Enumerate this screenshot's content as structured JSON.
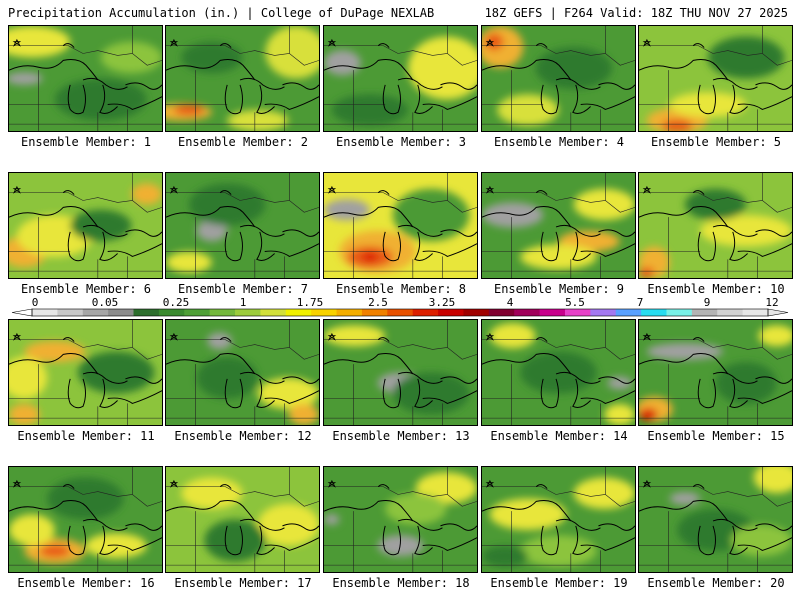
{
  "header": {
    "left_title": "Precipitation Accumulation (in.) | College of DuPage NEXLAB",
    "right_title": "18Z GEFS | F264 Valid: 18Z THU NOV 27 2025"
  },
  "colorbar": {
    "tick_labels": [
      "0",
      "0.05",
      "0.25",
      "1",
      "1.75",
      "2.5",
      "3.25",
      "4",
      "5.5",
      "7",
      "9",
      "12"
    ],
    "colors": [
      "#e6e6e6",
      "#c8c8c8",
      "#a6a6a6",
      "#8c8c8c",
      "#2d6e2d",
      "#3a8a2f",
      "#4e9f36",
      "#74b83c",
      "#9ccc3c",
      "#d2e03a",
      "#f0f000",
      "#f8d200",
      "#f4ae00",
      "#f08000",
      "#e85000",
      "#dc1e00",
      "#c80000",
      "#a00000",
      "#800030",
      "#a0005a",
      "#c8008c",
      "#e640c8",
      "#a478f0",
      "#5aa0ff",
      "#28dcf0",
      "#78f0e6",
      "#b4b4b4",
      "#d2d2d2",
      "#e6e6e6"
    ]
  },
  "members": [
    {
      "label": "Ensemble Member: 1",
      "base": "#4c9a35",
      "blobs": [
        [
          "#e8e63a",
          0.15,
          0.15,
          0.25,
          0.15
        ],
        [
          "#a0a0a0",
          0.1,
          0.5,
          0.12,
          0.06
        ],
        [
          "#2e7a2e",
          0.6,
          0.7,
          0.3,
          0.2
        ],
        [
          "#8cc43c",
          0.8,
          0.3,
          0.2,
          0.15
        ]
      ]
    },
    {
      "label": "Ensemble Member: 2",
      "base": "#4c9a35",
      "blobs": [
        [
          "#f0b030",
          0.1,
          0.82,
          0.2,
          0.08
        ],
        [
          "#e85a18",
          0.15,
          0.8,
          0.1,
          0.05
        ],
        [
          "#d8e03a",
          0.85,
          0.25,
          0.2,
          0.25
        ],
        [
          "#d8e03a",
          0.6,
          0.9,
          0.2,
          0.1
        ],
        [
          "#2e7a2e",
          0.3,
          0.3,
          0.2,
          0.15
        ]
      ]
    },
    {
      "label": "Ensemble Member: 3",
      "base": "#4c9a35",
      "blobs": [
        [
          "#e8e63a",
          0.8,
          0.4,
          0.25,
          0.3
        ],
        [
          "#a0a0a0",
          0.12,
          0.35,
          0.12,
          0.12
        ],
        [
          "#2e7a2e",
          0.3,
          0.8,
          0.25,
          0.15
        ]
      ]
    },
    {
      "label": "Ensemble Member: 4",
      "base": "#4c9a35",
      "blobs": [
        [
          "#f0b030",
          0.12,
          0.2,
          0.15,
          0.2
        ],
        [
          "#e85a18",
          0.08,
          0.15,
          0.06,
          0.08
        ],
        [
          "#d8e03a",
          0.3,
          0.8,
          0.2,
          0.15
        ],
        [
          "#2e7a2e",
          0.6,
          0.4,
          0.25,
          0.2
        ]
      ]
    },
    {
      "label": "Ensemble Member: 5",
      "base": "#8cc43c",
      "blobs": [
        [
          "#f0b030",
          0.25,
          0.9,
          0.2,
          0.12
        ],
        [
          "#e85a18",
          0.25,
          0.95,
          0.1,
          0.06
        ],
        [
          "#e8e63a",
          0.45,
          0.75,
          0.25,
          0.12
        ],
        [
          "#2e7a2e",
          0.7,
          0.3,
          0.25,
          0.2
        ]
      ]
    },
    {
      "label": "Ensemble Member: 6",
      "base": "#8cc43c",
      "blobs": [
        [
          "#f0b030",
          0.1,
          0.75,
          0.15,
          0.15
        ],
        [
          "#e8e63a",
          0.3,
          0.6,
          0.25,
          0.2
        ],
        [
          "#f0b030",
          0.9,
          0.2,
          0.1,
          0.1
        ],
        [
          "#2e7a2e",
          0.6,
          0.5,
          0.2,
          0.15
        ]
      ]
    },
    {
      "label": "Ensemble Member: 7",
      "base": "#4c9a35",
      "blobs": [
        [
          "#a0a0a0",
          0.3,
          0.55,
          0.1,
          0.1
        ],
        [
          "#2e7a2e",
          0.4,
          0.3,
          0.25,
          0.2
        ],
        [
          "#e8e63a",
          0.15,
          0.85,
          0.15,
          0.1
        ]
      ]
    },
    {
      "label": "Ensemble Member: 8",
      "base": "#e8e63a",
      "blobs": [
        [
          "#f0b030",
          0.35,
          0.75,
          0.25,
          0.2
        ],
        [
          "#e85a18",
          0.3,
          0.8,
          0.15,
          0.1
        ],
        [
          "#dc1e00",
          0.3,
          0.8,
          0.05,
          0.05
        ],
        [
          "#a0a0a0",
          0.15,
          0.35,
          0.15,
          0.1
        ],
        [
          "#4c9a35",
          0.7,
          0.4,
          0.25,
          0.25
        ]
      ]
    },
    {
      "label": "Ensemble Member: 9",
      "base": "#4c9a35",
      "blobs": [
        [
          "#a0a0a0",
          0.2,
          0.4,
          0.2,
          0.12
        ],
        [
          "#f0b030",
          0.7,
          0.65,
          0.2,
          0.1
        ],
        [
          "#e8e63a",
          0.8,
          0.3,
          0.2,
          0.15
        ],
        [
          "#e8e63a",
          0.5,
          0.8,
          0.25,
          0.12
        ]
      ]
    },
    {
      "label": "Ensemble Member: 10",
      "base": "#8cc43c",
      "blobs": [
        [
          "#f0b030",
          0.1,
          0.85,
          0.1,
          0.15
        ],
        [
          "#e85a18",
          0.05,
          0.95,
          0.05,
          0.05
        ],
        [
          "#e8e63a",
          0.7,
          0.55,
          0.3,
          0.15
        ],
        [
          "#2e7a2e",
          0.5,
          0.3,
          0.2,
          0.15
        ]
      ]
    },
    {
      "label": "Ensemble Member: 11",
      "base": "#8cc43c",
      "blobs": [
        [
          "#e85a18",
          0.3,
          0.3,
          0.15,
          0.06
        ],
        [
          "#f0b030",
          0.3,
          0.3,
          0.2,
          0.1
        ],
        [
          "#e8e63a",
          0.1,
          0.55,
          0.15,
          0.2
        ],
        [
          "#f0b030",
          0.1,
          0.9,
          0.1,
          0.1
        ],
        [
          "#2e7a2e",
          0.7,
          0.5,
          0.25,
          0.2
        ]
      ]
    },
    {
      "label": "Ensemble Member: 12",
      "base": "#4c9a35",
      "blobs": [
        [
          "#a0a0a0",
          0.35,
          0.2,
          0.08,
          0.08
        ],
        [
          "#e8e63a",
          0.8,
          0.7,
          0.2,
          0.15
        ],
        [
          "#f0b030",
          0.9,
          0.9,
          0.1,
          0.1
        ],
        [
          "#2e7a2e",
          0.4,
          0.55,
          0.2,
          0.2
        ]
      ]
    },
    {
      "label": "Ensemble Member: 13",
      "base": "#4c9a35",
      "blobs": [
        [
          "#a0a0a0",
          0.5,
          0.6,
          0.15,
          0.1
        ],
        [
          "#e8e63a",
          0.2,
          0.15,
          0.2,
          0.1
        ],
        [
          "#2e7a2e",
          0.7,
          0.7,
          0.25,
          0.2
        ]
      ]
    },
    {
      "label": "Ensemble Member: 14",
      "base": "#4c9a35",
      "blobs": [
        [
          "#e8e63a",
          0.2,
          0.15,
          0.15,
          0.12
        ],
        [
          "#a0a0a0",
          0.9,
          0.6,
          0.08,
          0.06
        ],
        [
          "#e8e63a",
          0.9,
          0.9,
          0.1,
          0.1
        ],
        [
          "#2e7a2e",
          0.5,
          0.5,
          0.25,
          0.2
        ]
      ]
    },
    {
      "label": "Ensemble Member: 15",
      "base": "#4c9a35",
      "blobs": [
        [
          "#f0b030",
          0.1,
          0.85,
          0.12,
          0.12
        ],
        [
          "#dc1e00",
          0.06,
          0.9,
          0.06,
          0.06
        ],
        [
          "#a0a0a0",
          0.3,
          0.3,
          0.25,
          0.08
        ],
        [
          "#e8e63a",
          0.9,
          0.15,
          0.12,
          0.1
        ],
        [
          "#2e7a2e",
          0.7,
          0.6,
          0.2,
          0.2
        ]
      ]
    },
    {
      "label": "Ensemble Member: 16",
      "base": "#4c9a35",
      "blobs": [
        [
          "#f0b030",
          0.3,
          0.8,
          0.2,
          0.12
        ],
        [
          "#e85a18",
          0.3,
          0.8,
          0.1,
          0.06
        ],
        [
          "#e8e63a",
          0.15,
          0.6,
          0.15,
          0.15
        ],
        [
          "#e8e63a",
          0.7,
          0.75,
          0.2,
          0.12
        ],
        [
          "#2e7a2e",
          0.5,
          0.3,
          0.25,
          0.2
        ]
      ]
    },
    {
      "label": "Ensemble Member: 17",
      "base": "#8cc43c",
      "blobs": [
        [
          "#e8e63a",
          0.3,
          0.25,
          0.2,
          0.15
        ],
        [
          "#e8e63a",
          0.8,
          0.55,
          0.2,
          0.2
        ],
        [
          "#2e7a2e",
          0.45,
          0.7,
          0.2,
          0.2
        ]
      ]
    },
    {
      "label": "Ensemble Member: 18",
      "base": "#4c9a35",
      "blobs": [
        [
          "#a0a0a0",
          0.5,
          0.75,
          0.15,
          0.1
        ],
        [
          "#a0a0a0",
          0.05,
          0.5,
          0.05,
          0.05
        ],
        [
          "#e8e63a",
          0.8,
          0.2,
          0.2,
          0.15
        ],
        [
          "#8cc43c",
          0.6,
          0.4,
          0.2,
          0.15
        ]
      ]
    },
    {
      "label": "Ensemble Member: 19",
      "base": "#4c9a35",
      "blobs": [
        [
          "#e8e63a",
          0.3,
          0.45,
          0.25,
          0.15
        ],
        [
          "#e8e63a",
          0.8,
          0.25,
          0.2,
          0.15
        ],
        [
          "#8cc43c",
          0.5,
          0.8,
          0.25,
          0.15
        ],
        [
          "#2e7a2e",
          0.15,
          0.85,
          0.15,
          0.1
        ]
      ]
    },
    {
      "label": "Ensemble Member: 20",
      "base": "#4c9a35",
      "blobs": [
        [
          "#a0a0a0",
          0.3,
          0.3,
          0.1,
          0.06
        ],
        [
          "#e8e63a",
          0.9,
          0.1,
          0.15,
          0.15
        ],
        [
          "#2e7a2e",
          0.5,
          0.6,
          0.25,
          0.2
        ],
        [
          "#8cc43c",
          0.8,
          0.7,
          0.2,
          0.15
        ]
      ]
    }
  ]
}
